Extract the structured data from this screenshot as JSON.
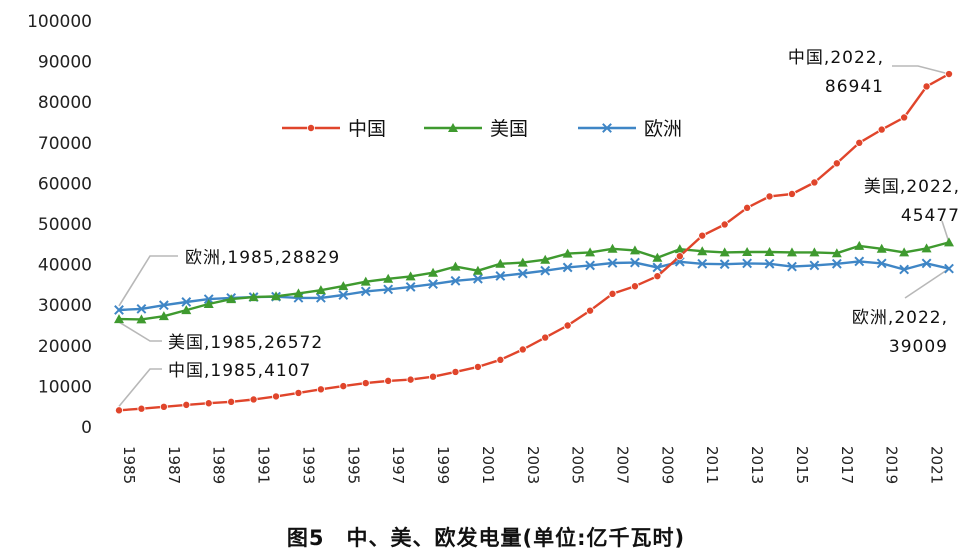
{
  "caption": "图5　中、美、欧发电量(单位:亿千瓦时)",
  "chart_data": {
    "type": "line",
    "x": [
      1985,
      1986,
      1987,
      1988,
      1989,
      1990,
      1991,
      1992,
      1993,
      1994,
      1995,
      1996,
      1997,
      1998,
      1999,
      2000,
      2001,
      2002,
      2003,
      2004,
      2005,
      2006,
      2007,
      2008,
      2009,
      2010,
      2011,
      2012,
      2013,
      2014,
      2015,
      2016,
      2017,
      2018,
      2019,
      2020,
      2021,
      2022
    ],
    "x_tick_labels": [
      "1985",
      "1987",
      "1989",
      "1991",
      "1993",
      "1995",
      "1997",
      "1999",
      "2001",
      "2003",
      "2005",
      "2007",
      "2009",
      "2011",
      "2013",
      "2015",
      "2017",
      "2019",
      "2021"
    ],
    "y_ticks": [
      "0",
      "10000",
      "20000",
      "30000",
      "40000",
      "50000",
      "60000",
      "70000",
      "80000",
      "90000",
      "100000"
    ],
    "ylim": [
      0,
      100000
    ],
    "grid": false,
    "legend_position": "top-center",
    "series": [
      {
        "name": "中国",
        "color": "#e0452b",
        "marker": "circle",
        "values": [
          4107,
          4500,
          4970,
          5450,
          5850,
          6200,
          6780,
          7540,
          8390,
          9280,
          10070,
          10810,
          11360,
          11670,
          12390,
          13560,
          14800,
          16540,
          19100,
          22030,
          25000,
          28660,
          32800,
          34670,
          37150,
          42070,
          47130,
          49880,
          53980,
          56800,
          57400,
          60230,
          64950,
          70000,
          73250,
          76240,
          83880,
          86941
        ]
      },
      {
        "name": "美国",
        "color": "#3f9a2f",
        "marker": "triangle",
        "values": [
          26572,
          26500,
          27300,
          28800,
          30300,
          31500,
          32000,
          32200,
          32900,
          33700,
          34700,
          35800,
          36500,
          37100,
          38000,
          39500,
          38500,
          40200,
          40500,
          41200,
          42700,
          43000,
          43900,
          43500,
          41700,
          43800,
          43300,
          43000,
          43100,
          43100,
          43000,
          43000,
          42800,
          44600,
          43900,
          43000,
          44000,
          45477
        ]
      },
      {
        "name": "欧洲",
        "color": "#3f86c6",
        "marker": "x",
        "values": [
          28829,
          29100,
          30000,
          30800,
          31500,
          31800,
          32000,
          32100,
          31800,
          31800,
          32500,
          33400,
          33900,
          34500,
          35200,
          36000,
          36500,
          37200,
          37800,
          38500,
          39300,
          39800,
          40400,
          40500,
          39300,
          40700,
          40200,
          40100,
          40300,
          40200,
          39500,
          39800,
          40200,
          40800,
          40300,
          38800,
          40300,
          39009
        ]
      }
    ],
    "annotations": [
      {
        "series": "欧洲",
        "lines": [
          "欧洲,1985,28829"
        ]
      },
      {
        "series": "美国",
        "lines": [
          "美国,1985,26572"
        ]
      },
      {
        "series": "中国",
        "lines": [
          "中国,1985,4107"
        ]
      },
      {
        "series": "中国",
        "lines": [
          "中国,2022,",
          "86941"
        ]
      },
      {
        "series": "美国",
        "lines": [
          "美国,2022,",
          "45477"
        ]
      },
      {
        "series": "欧洲",
        "lines": [
          "欧洲,2022,",
          "39009"
        ]
      }
    ]
  }
}
